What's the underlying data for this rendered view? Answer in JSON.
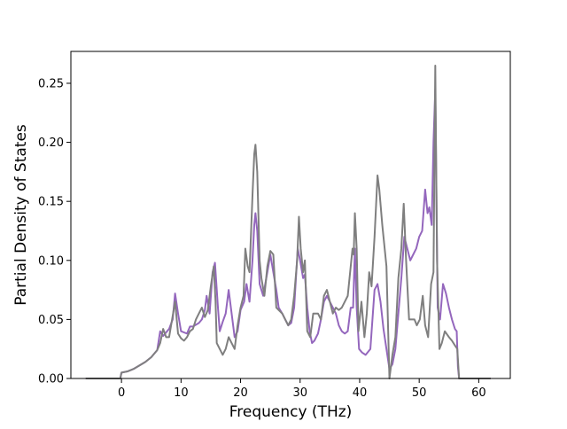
{
  "chart_data": {
    "type": "line",
    "xlabel": "Frequency (THz)",
    "ylabel": "Partial Density of States",
    "xlim": [
      -8.5,
      65.3
    ],
    "ylim": [
      0.0,
      0.277
    ],
    "x_ticks": [
      0,
      10,
      20,
      30,
      40,
      50,
      60
    ],
    "y_ticks": [
      0.0,
      0.05,
      0.1,
      0.15,
      0.2,
      0.25
    ],
    "x_tick_labels": [
      "0",
      "10",
      "20",
      "30",
      "40",
      "50",
      "60"
    ],
    "y_tick_labels": [
      "0.00",
      "0.05",
      "0.10",
      "0.15",
      "0.20",
      "0.25"
    ],
    "grid": false,
    "legend": "none",
    "series": [
      {
        "color": "#9467bd",
        "points": [
          [
            -6,
            0
          ],
          [
            -0.2,
            0
          ],
          [
            0,
            0.005
          ],
          [
            1,
            0.006
          ],
          [
            2,
            0.008
          ],
          [
            3,
            0.011
          ],
          [
            4,
            0.014
          ],
          [
            5,
            0.018
          ],
          [
            6,
            0.024
          ],
          [
            6.5,
            0.04
          ],
          [
            7,
            0.036
          ],
          [
            8,
            0.042
          ],
          [
            8.6,
            0.05
          ],
          [
            9,
            0.072
          ],
          [
            9.5,
            0.055
          ],
          [
            10,
            0.04
          ],
          [
            11,
            0.038
          ],
          [
            11.5,
            0.044
          ],
          [
            12,
            0.044
          ],
          [
            13,
            0.047
          ],
          [
            13.5,
            0.05
          ],
          [
            14,
            0.058
          ],
          [
            14.3,
            0.07
          ],
          [
            14.8,
            0.055
          ],
          [
            15.3,
            0.09
          ],
          [
            15.7,
            0.098
          ],
          [
            16.2,
            0.06
          ],
          [
            16.5,
            0.04
          ],
          [
            17,
            0.048
          ],
          [
            17.5,
            0.055
          ],
          [
            18,
            0.075
          ],
          [
            18.5,
            0.055
          ],
          [
            19,
            0.035
          ],
          [
            19.5,
            0.04
          ],
          [
            20,
            0.058
          ],
          [
            20.6,
            0.065
          ],
          [
            21,
            0.08
          ],
          [
            21.5,
            0.065
          ],
          [
            22,
            0.1
          ],
          [
            22.3,
            0.13
          ],
          [
            22.5,
            0.14
          ],
          [
            22.8,
            0.125
          ],
          [
            23.2,
            0.08
          ],
          [
            23.8,
            0.07
          ],
          [
            24.5,
            0.09
          ],
          [
            25,
            0.105
          ],
          [
            25.5,
            0.09
          ],
          [
            26,
            0.075
          ],
          [
            26.4,
            0.06
          ],
          [
            27,
            0.055
          ],
          [
            27.5,
            0.05
          ],
          [
            28,
            0.045
          ],
          [
            28.5,
            0.047
          ],
          [
            29,
            0.06
          ],
          [
            29.6,
            0.11
          ],
          [
            30,
            0.1
          ],
          [
            30.5,
            0.085
          ],
          [
            30.8,
            0.088
          ],
          [
            31.2,
            0.06
          ],
          [
            31.6,
            0.04
          ],
          [
            32,
            0.03
          ],
          [
            32.4,
            0.032
          ],
          [
            33,
            0.038
          ],
          [
            33.5,
            0.05
          ],
          [
            34,
            0.065
          ],
          [
            34.5,
            0.07
          ],
          [
            35,
            0.065
          ],
          [
            35.5,
            0.06
          ],
          [
            36,
            0.055
          ],
          [
            36.5,
            0.045
          ],
          [
            37,
            0.04
          ],
          [
            37.5,
            0.038
          ],
          [
            38,
            0.04
          ],
          [
            38.5,
            0.06
          ],
          [
            38.9,
            0.06
          ],
          [
            39.2,
            0.11
          ],
          [
            39.5,
            0.06
          ],
          [
            39.9,
            0.025
          ],
          [
            40.4,
            0.022
          ],
          [
            41,
            0.02
          ],
          [
            41.8,
            0.025
          ],
          [
            42.5,
            0.075
          ],
          [
            43,
            0.08
          ],
          [
            43.5,
            0.065
          ],
          [
            44,
            0.042
          ],
          [
            44.5,
            0.025
          ],
          [
            45,
            0.008
          ],
          [
            45.5,
            0.012
          ],
          [
            46,
            0.025
          ],
          [
            46.5,
            0.055
          ],
          [
            47,
            0.085
          ],
          [
            47.5,
            0.12
          ],
          [
            48,
            0.11
          ],
          [
            48.5,
            0.1
          ],
          [
            49,
            0.105
          ],
          [
            49.5,
            0.11
          ],
          [
            50,
            0.12
          ],
          [
            50.5,
            0.125
          ],
          [
            51,
            0.16
          ],
          [
            51.4,
            0.14
          ],
          [
            51.7,
            0.145
          ],
          [
            52.1,
            0.13
          ],
          [
            52.4,
            0.2
          ],
          [
            52.7,
            0.245
          ],
          [
            53.1,
            0.06
          ],
          [
            53.5,
            0.05
          ],
          [
            54,
            0.08
          ],
          [
            54.5,
            0.072
          ],
          [
            55,
            0.06
          ],
          [
            55.5,
            0.05
          ],
          [
            56,
            0.042
          ],
          [
            56.3,
            0.04
          ],
          [
            56.5,
            0.01
          ],
          [
            56.7,
            0
          ],
          [
            62,
            0
          ]
        ]
      },
      {
        "color": "#7f7f7f",
        "points": [
          [
            -6,
            0
          ],
          [
            -0.2,
            0
          ],
          [
            0,
            0.005
          ],
          [
            1,
            0.006
          ],
          [
            2,
            0.008
          ],
          [
            3,
            0.011
          ],
          [
            4,
            0.014
          ],
          [
            5,
            0.018
          ],
          [
            6,
            0.024
          ],
          [
            6.5,
            0.03
          ],
          [
            7,
            0.042
          ],
          [
            7.5,
            0.035
          ],
          [
            8,
            0.035
          ],
          [
            8.5,
            0.05
          ],
          [
            9,
            0.065
          ],
          [
            9.5,
            0.038
          ],
          [
            10,
            0.034
          ],
          [
            10.5,
            0.032
          ],
          [
            11,
            0.035
          ],
          [
            11.5,
            0.04
          ],
          [
            12,
            0.042
          ],
          [
            12.5,
            0.05
          ],
          [
            13,
            0.055
          ],
          [
            13.5,
            0.06
          ],
          [
            14,
            0.052
          ],
          [
            14.5,
            0.058
          ],
          [
            15,
            0.078
          ],
          [
            15.5,
            0.095
          ],
          [
            15.8,
            0.065
          ],
          [
            16,
            0.03
          ],
          [
            16.5,
            0.025
          ],
          [
            17,
            0.02
          ],
          [
            17.5,
            0.025
          ],
          [
            18,
            0.035
          ],
          [
            18.5,
            0.03
          ],
          [
            19,
            0.025
          ],
          [
            19.5,
            0.045
          ],
          [
            20,
            0.06
          ],
          [
            20.5,
            0.07
          ],
          [
            20.8,
            0.11
          ],
          [
            21.2,
            0.095
          ],
          [
            21.5,
            0.09
          ],
          [
            22,
            0.155
          ],
          [
            22.3,
            0.19
          ],
          [
            22.5,
            0.198
          ],
          [
            22.8,
            0.175
          ],
          [
            23.2,
            0.1
          ],
          [
            23.5,
            0.085
          ],
          [
            24,
            0.07
          ],
          [
            24.5,
            0.095
          ],
          [
            25,
            0.108
          ],
          [
            25.5,
            0.105
          ],
          [
            26,
            0.06
          ],
          [
            26.4,
            0.058
          ],
          [
            27,
            0.055
          ],
          [
            27.5,
            0.05
          ],
          [
            28,
            0.045
          ],
          [
            28.5,
            0.05
          ],
          [
            29,
            0.07
          ],
          [
            29.5,
            0.1
          ],
          [
            29.8,
            0.137
          ],
          [
            30.1,
            0.11
          ],
          [
            30.5,
            0.09
          ],
          [
            30.8,
            0.1
          ],
          [
            31.2,
            0.04
          ],
          [
            31.7,
            0.035
          ],
          [
            32.2,
            0.055
          ],
          [
            33,
            0.055
          ],
          [
            33.5,
            0.05
          ],
          [
            34,
            0.07
          ],
          [
            34.5,
            0.075
          ],
          [
            35,
            0.065
          ],
          [
            35.5,
            0.055
          ],
          [
            36,
            0.06
          ],
          [
            36.5,
            0.058
          ],
          [
            37,
            0.06
          ],
          [
            37.5,
            0.065
          ],
          [
            38,
            0.07
          ],
          [
            38.5,
            0.095
          ],
          [
            38.8,
            0.11
          ],
          [
            39,
            0.105
          ],
          [
            39.2,
            0.14
          ],
          [
            39.5,
            0.11
          ],
          [
            39.8,
            0.04
          ],
          [
            40.3,
            0.065
          ],
          [
            40.8,
            0.035
          ],
          [
            41.2,
            0.055
          ],
          [
            41.6,
            0.09
          ],
          [
            42,
            0.078
          ],
          [
            42.5,
            0.12
          ],
          [
            43,
            0.172
          ],
          [
            43.3,
            0.16
          ],
          [
            43.8,
            0.13
          ],
          [
            44.5,
            0.095
          ],
          [
            45,
            0.0
          ],
          [
            45.5,
            0.02
          ],
          [
            46,
            0.035
          ],
          [
            46.5,
            0.085
          ],
          [
            47,
            0.11
          ],
          [
            47.4,
            0.148
          ],
          [
            47.8,
            0.1
          ],
          [
            48.3,
            0.05
          ],
          [
            48.8,
            0.05
          ],
          [
            49.2,
            0.05
          ],
          [
            49.6,
            0.045
          ],
          [
            50.1,
            0.05
          ],
          [
            50.6,
            0.07
          ],
          [
            51,
            0.045
          ],
          [
            51.5,
            0.035
          ],
          [
            52,
            0.08
          ],
          [
            52.4,
            0.09
          ],
          [
            52.7,
            0.265
          ],
          [
            53,
            0.1
          ],
          [
            53.4,
            0.025
          ],
          [
            53.8,
            0.03
          ],
          [
            54.3,
            0.04
          ],
          [
            55,
            0.035
          ],
          [
            55.5,
            0.032
          ],
          [
            56,
            0.028
          ],
          [
            56.4,
            0.025
          ],
          [
            56.7,
            0
          ],
          [
            62,
            0
          ]
        ]
      }
    ]
  }
}
